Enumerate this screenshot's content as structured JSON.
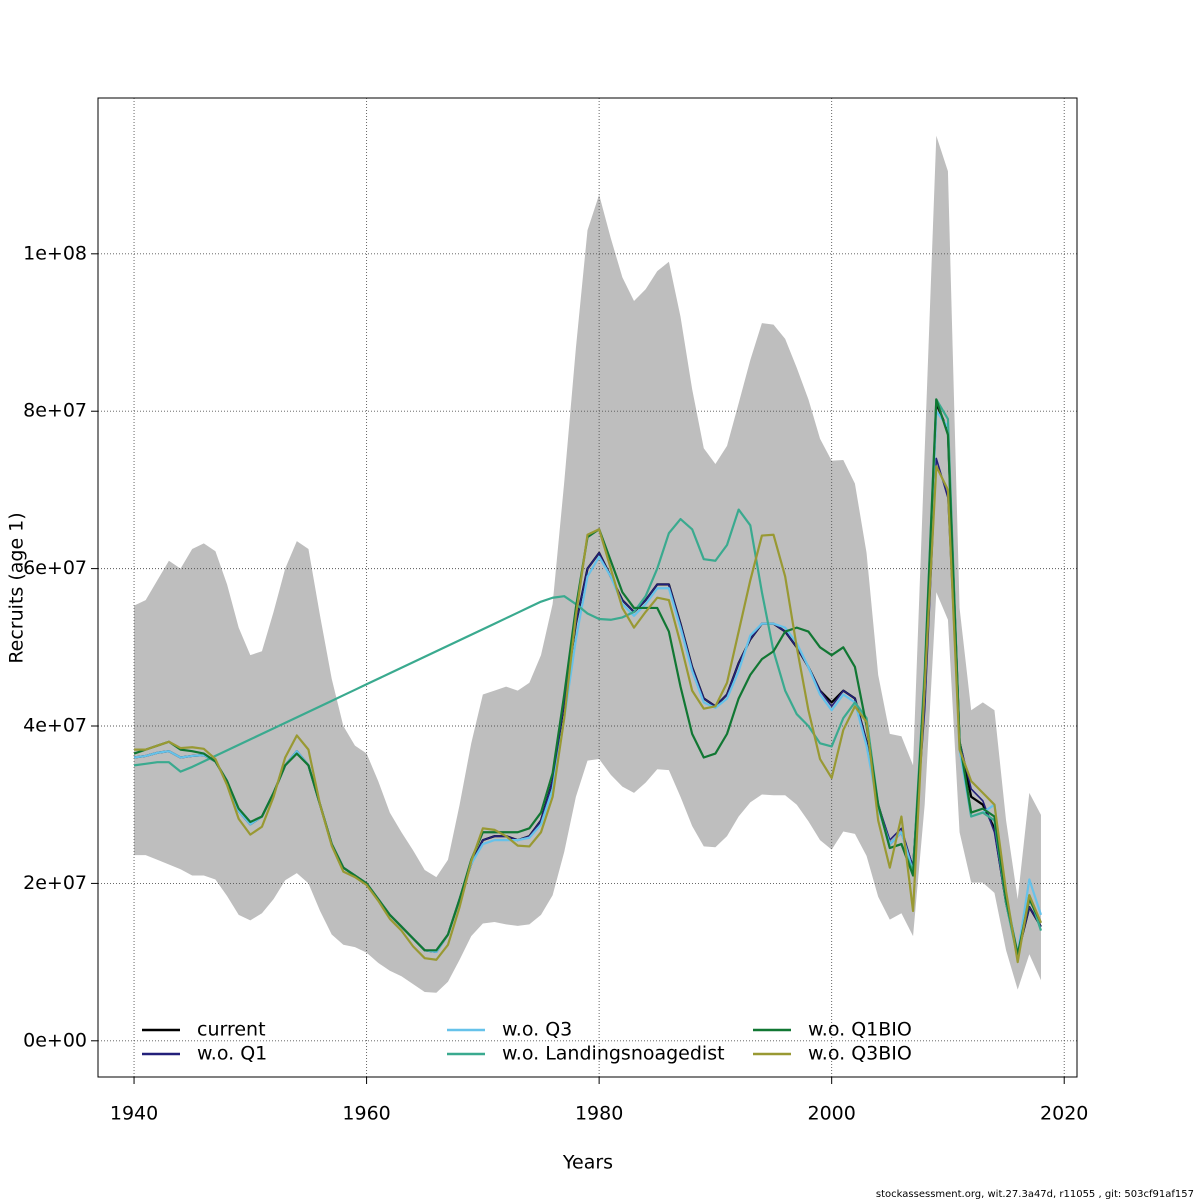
{
  "chart_data": {
    "type": "line",
    "xlabel": "Years",
    "ylabel": "Recruits (age 1)",
    "footer": "stockassessment.org, wit.27.3a47d, r11055 , git: 503cf91af157",
    "x": [
      1940,
      1941,
      1942,
      1943,
      1944,
      1945,
      1946,
      1947,
      1948,
      1949,
      1950,
      1951,
      1952,
      1953,
      1954,
      1955,
      1956,
      1957,
      1958,
      1959,
      1960,
      1961,
      1962,
      1963,
      1964,
      1965,
      1966,
      1967,
      1968,
      1969,
      1970,
      1971,
      1972,
      1973,
      1974,
      1975,
      1976,
      1977,
      1978,
      1979,
      1980,
      1981,
      1982,
      1983,
      1984,
      1985,
      1986,
      1987,
      1988,
      1989,
      1990,
      1991,
      1992,
      1993,
      1994,
      1995,
      1996,
      1997,
      1998,
      1999,
      2000,
      2001,
      2002,
      2003,
      2004,
      2005,
      2006,
      2007,
      2008,
      2009,
      2010,
      2011,
      2012,
      2013,
      2014,
      2015,
      2016,
      2017,
      2018
    ],
    "xlim": [
      1936.9,
      2021.1
    ],
    "xticks": [
      1940,
      1960,
      1980,
      2000,
      2020
    ],
    "ylim": [
      -4600000.0,
      119800000.0
    ],
    "yticks": [
      {
        "value": 0,
        "label": "0e+00"
      },
      {
        "value": 20000000,
        "label": "2e+07"
      },
      {
        "value": 40000000,
        "label": "4e+07"
      },
      {
        "value": 60000000,
        "label": "6e+07"
      },
      {
        "value": 80000000,
        "label": "8e+07"
      },
      {
        "value": 100000000,
        "label": "1e+08"
      }
    ],
    "grid": true,
    "legend": "bottom",
    "band": {
      "color": "#bebebe",
      "upper": [
        55300000.0,
        56000000.0,
        58500000.0,
        61000000.0,
        60000000.0,
        62500000.0,
        63200000.0,
        62200000.0,
        58000000.0,
        52500000.0,
        49000000.0,
        49500000.0,
        54500000.0,
        60000000.0,
        63500000.0,
        62500000.0,
        54000000.0,
        46000000.0,
        40000000.0,
        37500000.0,
        36500000.0,
        33000000.0,
        29000000.0,
        26500000.0,
        24200000.0,
        21700000.0,
        20800000.0,
        23000000.0,
        30000000.0,
        37800000.0,
        44000000.0,
        44500000.0,
        45000000.0,
        44500000.0,
        45500000.0,
        49000000.0,
        55500000.0,
        71000000.0,
        88000000.0,
        103000000.0,
        107500000.0,
        102000000.0,
        97000000.0,
        94000000.0,
        95500000.0,
        97800000.0,
        99000000.0,
        92000000.0,
        82800000.0,
        75300000.0,
        73300000.0,
        75600000.0,
        81000000.0,
        86500000.0,
        91200000.0,
        91000000.0,
        89200000.0,
        85500000.0,
        81500000.0,
        76500000.0,
        73700000.0,
        73800000.0,
        70800000.0,
        62000000.0,
        46500000.0,
        39000000.0,
        38700000.0,
        35000000.0,
        75000000.0,
        115000000.0,
        110500000.0,
        55000000.0,
        42000000.0,
        43000000.0,
        42000000.0,
        28000000.0,
        18000000.0,
        31500000.0,
        28700000.0
      ],
      "lower": [
        23600000.0,
        23600000.0,
        23000000.0,
        22400000.0,
        21800000.0,
        21000000.0,
        21000000.0,
        20500000.0,
        18400000.0,
        16000000.0,
        15300000.0,
        16200000.0,
        18000000.0,
        20400000.0,
        21300000.0,
        20000000.0,
        16500000.0,
        13500000.0,
        12200000.0,
        11900000.0,
        11200000.0,
        9900000.0,
        8900000.0,
        8200000.0,
        7200000.0,
        6200000.0,
        6100000.0,
        7500000.0,
        10300000.0,
        13300000.0,
        14900000.0,
        15100000.0,
        14800000.0,
        14600000.0,
        14800000.0,
        16000000.0,
        18500000.0,
        24000000.0,
        31000000.0,
        35600000.0,
        35800000.0,
        33800000.0,
        32300000.0,
        31500000.0,
        32800000.0,
        34500000.0,
        34400000.0,
        31000000.0,
        27300000.0,
        24700000.0,
        24600000.0,
        26000000.0,
        28500000.0,
        30300000.0,
        31300000.0,
        31200000.0,
        31200000.0,
        30000000.0,
        27900000.0,
        25500000.0,
        24300000.0,
        26600000.0,
        26300000.0,
        23500000.0,
        18300000.0,
        15400000.0,
        16200000.0,
        13300000.0,
        30000000.0,
        57000000.0,
        53500000.0,
        26500000.0,
        20100000.0,
        20100000.0,
        18800000.0,
        11500000.0,
        6500000.0,
        11000000.0,
        7700000.0
      ]
    },
    "series": [
      {
        "name": "current",
        "color": "#000000",
        "values": [
          36000000.0,
          36200000.0,
          36600000.0,
          36800000.0,
          36000000.0,
          36200000.0,
          36300000.0,
          35500000.0,
          33000000.0,
          29200000.0,
          27500000.0,
          28500000.0,
          31500000.0,
          35000000.0,
          36800000.0,
          35000000.0,
          30000000.0,
          25000000.0,
          22000000.0,
          21000000.0,
          20000000.0,
          18000000.0,
          16000000.0,
          14500000.0,
          13000000.0,
          11500000.0,
          11300000.0,
          13500000.0,
          18000000.0,
          22500000.0,
          25500000.0,
          26000000.0,
          26000000.0,
          25500000.0,
          26000000.0,
          28000000.0,
          33000000.0,
          43000000.0,
          53000000.0,
          60000000.0,
          62000000.0,
          59000000.0,
          56000000.0,
          54500000.0,
          56000000.0,
          58000000.0,
          58000000.0,
          53000000.0,
          47500000.0,
          43500000.0,
          42500000.0,
          44000000.0,
          48000000.0,
          51000000.0,
          53000000.0,
          53000000.0,
          52000000.0,
          50000000.0,
          47500000.0,
          44500000.0,
          43000000.0,
          44500000.0,
          43500000.0,
          38000000.0,
          30000000.0,
          25000000.0,
          26500000.0,
          22000000.0,
          44000000.0,
          81000000.0,
          77500000.0,
          38000000.0,
          31000000.0,
          30000000.0,
          27000000.0,
          17500000.0,
          11000000.0,
          17000000.0,
          14500000.0
        ]
      },
      {
        "name": "w.o. Q1",
        "color": "#23207a",
        "values": [
          36000000.0,
          36200000.0,
          36600000.0,
          36800000.0,
          36000000.0,
          36200000.0,
          36300000.0,
          35500000.0,
          33000000.0,
          29200000.0,
          27500000.0,
          28500000.0,
          31500000.0,
          35000000.0,
          36800000.0,
          35000000.0,
          30000000.0,
          25000000.0,
          22000000.0,
          21000000.0,
          20000000.0,
          18000000.0,
          16000000.0,
          14500000.0,
          13000000.0,
          11500000.0,
          11300000.0,
          13500000.0,
          18000000.0,
          22500000.0,
          25500000.0,
          26000000.0,
          26000000.0,
          25500000.0,
          26000000.0,
          28000000.0,
          33000000.0,
          43000000.0,
          53000000.0,
          60000000.0,
          62000000.0,
          59000000.0,
          56000000.0,
          54500000.0,
          56000000.0,
          58000000.0,
          58000000.0,
          53000000.0,
          47500000.0,
          43500000.0,
          42500000.0,
          44000000.0,
          48000000.0,
          51000000.0,
          53000000.0,
          53000000.0,
          52000000.0,
          50000000.0,
          47500000.0,
          44500000.0,
          42500000.0,
          44500000.0,
          43500000.0,
          38000000.0,
          30000000.0,
          25500000.0,
          27000000.0,
          22000000.0,
          42000000.0,
          74000000.0,
          69000000.0,
          38000000.0,
          32000000.0,
          30500000.0,
          26500000.0,
          17500000.0,
          11000000.0,
          17000000.0,
          14500000.0
        ]
      },
      {
        "name": "w.o. Q3",
        "color": "#66c2ea",
        "values": [
          36000000.0,
          36200000.0,
          36600000.0,
          36800000.0,
          36000000.0,
          36200000.0,
          36300000.0,
          35500000.0,
          33000000.0,
          29200000.0,
          27500000.0,
          28500000.0,
          31500000.0,
          35000000.0,
          36800000.0,
          35000000.0,
          30000000.0,
          25000000.0,
          22000000.0,
          21000000.0,
          20000000.0,
          18000000.0,
          16000000.0,
          14500000.0,
          13000000.0,
          11500000.0,
          11300000.0,
          13500000.0,
          18000000.0,
          22500000.0,
          25000000.0,
          25500000.0,
          25500000.0,
          25500000.0,
          25800000.0,
          27500000.0,
          32000000.0,
          41000000.0,
          51000000.0,
          59000000.0,
          61500000.0,
          59000000.0,
          55500000.0,
          54000000.0,
          55500000.0,
          57500000.0,
          57500000.0,
          52500000.0,
          47000000.0,
          43000000.0,
          42300000.0,
          43500000.0,
          47000000.0,
          51500000.0,
          53000000.0,
          53000000.0,
          52500000.0,
          50500000.0,
          47500000.0,
          44000000.0,
          42000000.0,
          44000000.0,
          43000000.0,
          37500000.0,
          29500000.0,
          25000000.0,
          26500000.0,
          21500000.0,
          45000000.0,
          80000000.0,
          78000000.0,
          37000000.0,
          28500000.0,
          29000000.0,
          30000000.0,
          18500000.0,
          11000000.0,
          20500000.0,
          16000000.0
        ]
      },
      {
        "name": "w.o. Landingsnoagedist",
        "color": "#3aaa8f",
        "values": [
          35000000.0,
          35200000.0,
          35400000.0,
          35400000.0,
          34200000.0,
          34800000.0,
          35500000.0,
          36200000.0,
          36900000.0,
          37600000.0,
          38300000.0,
          39000000.0,
          39700000.0,
          40400000.0,
          41100000.0,
          41800000.0,
          42500000.0,
          43200000.0,
          43900000.0,
          44600000.0,
          45300000.0,
          46000000.0,
          46700000.0,
          47400000.0,
          48100000.0,
          48800000.0,
          49500000.0,
          50200000.0,
          50900000.0,
          51600000.0,
          52300000.0,
          53000000.0,
          53700000.0,
          54400000.0,
          55100000.0,
          55800000.0,
          56300000.0,
          56500000.0,
          55500000.0,
          54300000.0,
          53600000.0,
          53500000.0,
          53800000.0,
          54500000.0,
          56500000.0,
          60000000.0,
          64500000.0,
          66300000.0,
          65000000.0,
          61200000.0,
          61000000.0,
          63000000.0,
          67500000.0,
          65500000.0,
          57000000.0,
          49500000.0,
          44500000.0,
          41500000.0,
          40000000.0,
          37800000.0,
          37400000.0,
          41000000.0,
          43000000.0,
          41000000.0,
          30000000.0,
          24500000.0,
          25000000.0,
          21500000.0,
          47000000.0,
          81500000.0,
          79000000.0,
          38000000.0,
          28500000.0,
          29000000.0,
          28000000.0,
          17500000.0,
          10500000.0,
          18500000.0,
          14000000.0
        ]
      },
      {
        "name": "w.o. Q1BIO",
        "color": "#117733",
        "values": [
          36500000.0,
          37000000.0,
          37500000.0,
          38000000.0,
          37000000.0,
          36800000.0,
          36500000.0,
          35500000.0,
          33000000.0,
          29500000.0,
          27800000.0,
          28500000.0,
          31500000.0,
          35000000.0,
          36500000.0,
          35000000.0,
          30000000.0,
          25000000.0,
          22000000.0,
          21000000.0,
          20000000.0,
          18000000.0,
          16000000.0,
          14500000.0,
          13000000.0,
          11500000.0,
          11500000.0,
          13500000.0,
          18000000.0,
          23000000.0,
          26500000.0,
          26500000.0,
          26500000.0,
          26500000.0,
          27000000.0,
          29000000.0,
          34000000.0,
          44000000.0,
          55000000.0,
          64000000.0,
          65000000.0,
          61000000.0,
          57000000.0,
          55000000.0,
          55000000.0,
          55000000.0,
          52000000.0,
          45000000.0,
          39000000.0,
          36000000.0,
          36500000.0,
          39000000.0,
          43500000.0,
          46500000.0,
          48500000.0,
          49500000.0,
          52000000.0,
          52500000.0,
          52000000.0,
          50000000.0,
          49000000.0,
          50000000.0,
          47500000.0,
          40000000.0,
          30000000.0,
          24500000.0,
          25000000.0,
          21000000.0,
          46000000.0,
          81500000.0,
          77000000.0,
          38000000.0,
          29000000.0,
          29500000.0,
          28500000.0,
          18000000.0,
          11000000.0,
          18000000.0,
          15000000.0
        ]
      },
      {
        "name": "w.o. Q3BIO",
        "color": "#999933",
        "values": [
          37000000.0,
          37000000.0,
          37500000.0,
          38000000.0,
          37200000.0,
          37300000.0,
          37100000.0,
          35800000.0,
          32500000.0,
          28200000.0,
          26200000.0,
          27200000.0,
          31000000.0,
          36000000.0,
          38800000.0,
          37000000.0,
          30000000.0,
          24800000.0,
          21500000.0,
          20800000.0,
          19800000.0,
          17800000.0,
          15500000.0,
          14000000.0,
          12000000.0,
          10500000.0,
          10300000.0,
          12200000.0,
          17000000.0,
          22800000.0,
          27000000.0,
          26800000.0,
          26000000.0,
          24800000.0,
          24700000.0,
          26500000.0,
          31000000.0,
          41000000.0,
          54000000.0,
          64300000.0,
          65000000.0,
          60000000.0,
          55000000.0,
          52500000.0,
          54500000.0,
          56300000.0,
          56000000.0,
          50500000.0,
          44500000.0,
          42200000.0,
          42500000.0,
          45500000.0,
          52000000.0,
          58500000.0,
          64200000.0,
          64300000.0,
          59000000.0,
          50000000.0,
          42000000.0,
          35800000.0,
          33400000.0,
          39500000.0,
          42500000.0,
          40500000.0,
          28000000.0,
          22000000.0,
          28500000.0,
          16500000.0,
          45000000.0,
          73000000.0,
          70000000.0,
          37000000.0,
          33000000.0,
          31500000.0,
          30000000.0,
          19000000.0,
          10000000.0,
          18500000.0,
          15000000.0
        ]
      }
    ]
  }
}
